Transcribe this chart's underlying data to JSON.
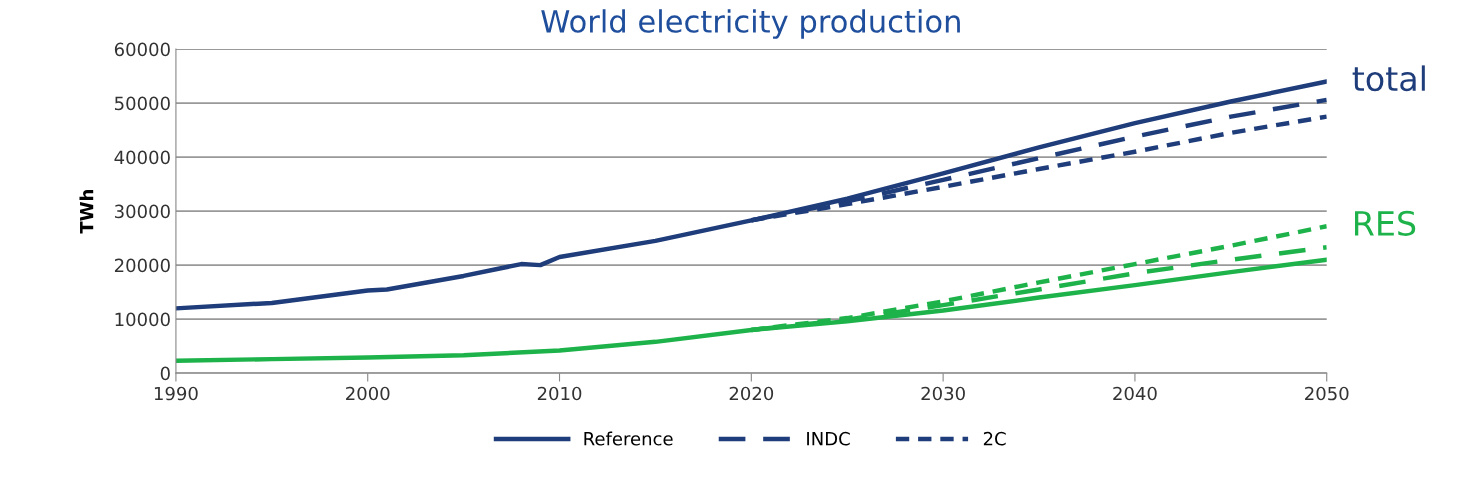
{
  "chart_data": {
    "type": "line",
    "title": "World electricity production",
    "ylabel": "TWh",
    "xlim": [
      1990,
      2050
    ],
    "xticks": [
      1990,
      2000,
      2010,
      2020,
      2030,
      2040,
      2050
    ],
    "ylim": [
      0,
      60000
    ],
    "yticks": [
      0,
      10000,
      20000,
      30000,
      40000,
      50000,
      60000
    ],
    "grid": "y",
    "legend": "bottom",
    "series": [
      {
        "name": "Reference",
        "color": "#1f3d7a",
        "line_style": "solid",
        "x": [
          1990,
          1995,
          2000,
          2001,
          2005,
          2008,
          2009,
          2010,
          2015,
          2020,
          2025,
          2030,
          2035,
          2040,
          2045,
          2050
        ],
        "values": [
          12000,
          13000,
          15300,
          15500,
          18000,
          20200,
          20000,
          21500,
          24500,
          28300,
          32300,
          37000,
          41800,
          46300,
          50300,
          54000
        ]
      },
      {
        "name": "INDC",
        "color": "#1f3d7a",
        "line_style": "dashed",
        "x": [
          2020,
          2025,
          2030,
          2035,
          2040,
          2045,
          2050
        ],
        "values": [
          28300,
          31800,
          35800,
          39800,
          43800,
          47500,
          50600
        ]
      },
      {
        "name": "2C",
        "color": "#1f3d7a",
        "line_style": "dotted",
        "x": [
          2020,
          2025,
          2030,
          2035,
          2040,
          2045,
          2050
        ],
        "values": [
          28300,
          31300,
          34500,
          37800,
          41000,
          44500,
          47500
        ]
      },
      {
        "color": "#1db34a",
        "line_style": "solid",
        "x": [
          1990,
          1995,
          2000,
          2005,
          2010,
          2015,
          2020,
          2025,
          2030,
          2035,
          2040,
          2045,
          2050
        ],
        "values": [
          2300,
          2600,
          2900,
          3300,
          4200,
          5800,
          8000,
          9600,
          11600,
          14000,
          16300,
          18700,
          21000
        ]
      },
      {
        "color": "#1db34a",
        "line_style": "dashed",
        "x": [
          2020,
          2025,
          2030,
          2035,
          2040,
          2045,
          2050
        ],
        "values": [
          8000,
          9900,
          12600,
          15500,
          18500,
          21000,
          23300
        ]
      },
      {
        "color": "#1db34a",
        "line_style": "dotted",
        "x": [
          2020,
          2025,
          2030,
          2035,
          2040,
          2045,
          2050
        ],
        "values": [
          8000,
          10200,
          13300,
          16800,
          20200,
          23600,
          27200
        ]
      }
    ],
    "annotations": [
      {
        "text": "total",
        "x": 2050,
        "y": 54000
      },
      {
        "text": "RES",
        "x": 2050,
        "y": 27200
      }
    ]
  }
}
